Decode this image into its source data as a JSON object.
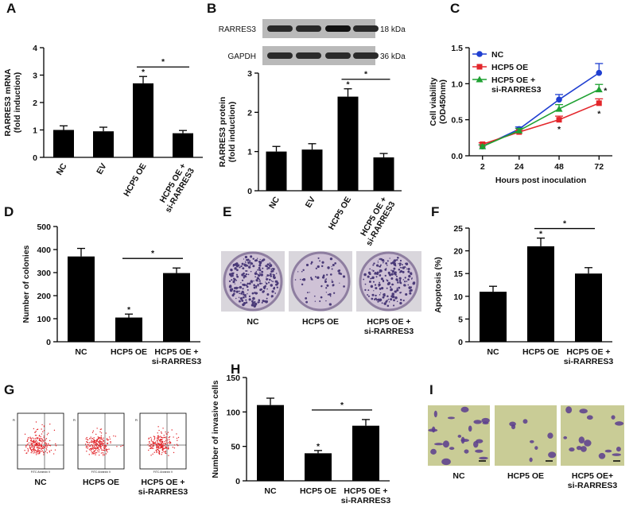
{
  "chart_data": [
    {
      "panel": "A",
      "type": "bar",
      "ylabel": "RARRES3 mRNA\n(fold induction)",
      "categories": [
        "NC",
        "EV",
        "HCP5 OE",
        "HCP5 OE +\nsi-RARRES3"
      ],
      "values": [
        1.0,
        0.95,
        2.7,
        0.88
      ],
      "errors": [
        0.15,
        0.15,
        0.25,
        0.1
      ],
      "color": "#000000",
      "ylim": [
        0,
        4
      ],
      "yticks": [
        0,
        1,
        2,
        3,
        4
      ],
      "annotations": [
        {
          "text": "*",
          "category": "HCP5 OE"
        },
        {
          "text": "*",
          "from": "HCP5 OE",
          "to": "HCP5 OE +\nsi-RARRES3"
        }
      ]
    },
    {
      "panel": "B",
      "type": "bar",
      "ylabel": "RARRES3 protein\n(fold induction)",
      "categories": [
        "NC",
        "EV",
        "HCP5 OE",
        "HCP5 OE +\nsi-RARRES3"
      ],
      "values": [
        1.0,
        1.05,
        2.4,
        0.85
      ],
      "errors": [
        0.13,
        0.15,
        0.2,
        0.1
      ],
      "color": "#000000",
      "ylim": [
        0,
        3
      ],
      "yticks": [
        0,
        1,
        2,
        3
      ],
      "annotations": [
        {
          "text": "*",
          "category": "HCP5 OE"
        },
        {
          "text": "*",
          "from": "HCP5 OE",
          "to": "HCP5 OE +\nsi-RARRES3"
        }
      ]
    },
    {
      "panel": "C",
      "type": "line",
      "xlabel": "Hours post inoculation",
      "ylabel": "Cell viability\n(OD450nm)",
      "x": [
        2,
        24,
        48,
        72
      ],
      "xlim": [
        -6,
        80
      ],
      "xticks": [
        2,
        24,
        48,
        72
      ],
      "ylim": [
        0,
        1.5
      ],
      "yticks": [
        {
          "value": 0,
          "label": "0.0"
        },
        {
          "value": 0.5,
          "label": "0.5"
        },
        {
          "value": 1,
          "label": "1.0"
        },
        {
          "value": 1.5,
          "label": "1.5"
        }
      ],
      "legend": "upper left",
      "series": [
        {
          "name": "NC",
          "color": "#1f3fd1",
          "marker": "circle",
          "values": [
            0.13,
            0.37,
            0.78,
            1.15
          ],
          "errors": [
            0.02,
            0.03,
            0.07,
            0.13
          ]
        },
        {
          "name": "HCP5 OE",
          "color": "#e3262b",
          "marker": "square",
          "values": [
            0.16,
            0.33,
            0.5,
            0.73
          ],
          "errors": [
            0.02,
            0.02,
            0.05,
            0.06
          ]
        },
        {
          "name": "HCP5 OE +\nsi-RARRES3",
          "color": "#1fa132",
          "marker": "triangle",
          "values": [
            0.13,
            0.35,
            0.65,
            0.92
          ],
          "errors": [
            0.02,
            0.03,
            0.06,
            0.07
          ]
        }
      ],
      "annotations": [
        {
          "text": "*",
          "series": "HCP5 OE",
          "x": 48
        },
        {
          "text": "*",
          "series": "HCP5 OE",
          "x": 72
        },
        {
          "text": "*",
          "series": "HCP5 OE +\nsi-RARRES3",
          "x": 72
        }
      ]
    },
    {
      "panel": "D",
      "type": "bar",
      "ylabel": "Number of colonies",
      "categories": [
        "NC",
        "HCP5 OE",
        "HCP5 OE +\nsi-RARRES3"
      ],
      "values": [
        370,
        105,
        298
      ],
      "errors": [
        35,
        15,
        22
      ],
      "color": "#000000",
      "ylim": [
        0,
        500
      ],
      "yticks": [
        0,
        100,
        200,
        300,
        400,
        500
      ],
      "annotations": [
        {
          "text": "*",
          "category": "HCP5 OE"
        },
        {
          "text": "*",
          "from": "HCP5 OE",
          "to": "HCP5 OE +\nsi-RARRES3"
        }
      ]
    },
    {
      "panel": "F",
      "type": "bar",
      "ylabel": "Apoptosis (%)",
      "categories": [
        "NC",
        "HCP5 OE",
        "HCP5 OE +\nsi-RARRES3"
      ],
      "values": [
        11,
        21,
        15
      ],
      "errors": [
        1.2,
        1.8,
        1.3
      ],
      "color": "#000000",
      "ylim": [
        0,
        25
      ],
      "yticks": [
        0,
        5,
        10,
        15,
        20,
        25
      ],
      "annotations": [
        {
          "text": "*",
          "category": "HCP5 OE"
        },
        {
          "text": "*",
          "from": "HCP5 OE",
          "to": "HCP5 OE +\nsi-RARRES3"
        }
      ]
    },
    {
      "panel": "H",
      "type": "bar",
      "ylabel": "Number of invasive cells",
      "categories": [
        "NC",
        "HCP5 OE",
        "HCP5 OE +\nsi-RARRES3"
      ],
      "values": [
        110,
        40,
        80
      ],
      "errors": [
        10,
        4,
        9
      ],
      "color": "#000000",
      "ylim": [
        0,
        150
      ],
      "yticks": [
        0,
        50,
        100,
        150
      ],
      "annotations": [
        {
          "text": "*",
          "category": "HCP5 OE"
        },
        {
          "text": "*",
          "from": "HCP5 OE",
          "to": "HCP5 OE +\nsi-RARRES3"
        }
      ]
    }
  ],
  "image_panels": {
    "blot": {
      "bands": [
        "RARRES3",
        "GAPDH"
      ],
      "sizes": [
        "18 kDa",
        "36 kDa"
      ]
    },
    "E": {
      "panel": "E",
      "labels": [
        "NC",
        "HCP5 OE",
        "HCP5 OE +\nsi-RARRES3"
      ]
    },
    "G": {
      "panel": "G",
      "labels": [
        "NC",
        "HCP5 OE",
        "HCP5 OE +\nsi-RARRES3"
      ],
      "x_label": "FITC Annexin V",
      "y_label": "PI"
    },
    "I": {
      "panel": "I",
      "labels": [
        "NC",
        "HCP5 OE",
        "HCP5 OE+\nsi-RARRES3"
      ]
    }
  }
}
